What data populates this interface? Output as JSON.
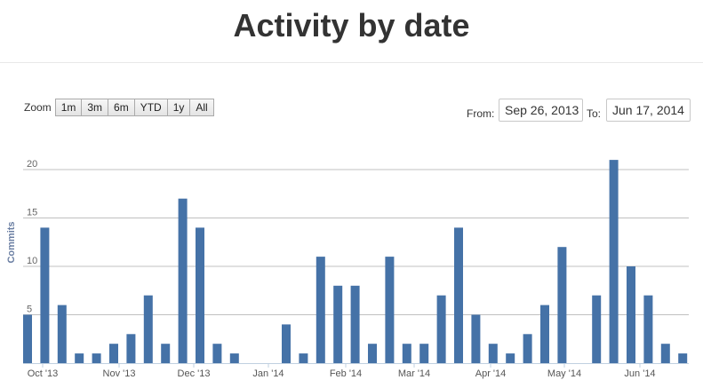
{
  "page": {
    "title": "Activity by date"
  },
  "zoom": {
    "label": "Zoom",
    "buttons": [
      "1m",
      "3m",
      "6m",
      "YTD",
      "1y",
      "All"
    ]
  },
  "range": {
    "from_label": "From:",
    "from_value": "Sep 26, 2013",
    "to_label": "To:",
    "to_value": "Jun 17, 2014"
  },
  "colors": {
    "bar": "#4572a7",
    "grid": "#c0c0c0"
  },
  "chart_data": {
    "type": "bar",
    "ylabel": "Commits",
    "ylim": [
      0,
      22
    ],
    "yticks": [
      0,
      5,
      10,
      15,
      20
    ],
    "xtick_labels": [
      "Oct '13",
      "Nov '13",
      "Dec '13",
      "Jan '14",
      "Feb '14",
      "Mar '14",
      "Apr '14",
      "May '14",
      "Jun '14"
    ],
    "values": [
      5,
      14,
      6,
      1,
      1,
      2,
      3,
      7,
      2,
      17,
      14,
      2,
      1,
      0,
      0,
      4,
      1,
      11,
      8,
      8,
      2,
      11,
      2,
      2,
      7,
      14,
      5,
      2,
      1,
      3,
      6,
      12,
      0,
      7,
      21,
      10,
      7,
      2,
      1
    ],
    "grid": true
  }
}
